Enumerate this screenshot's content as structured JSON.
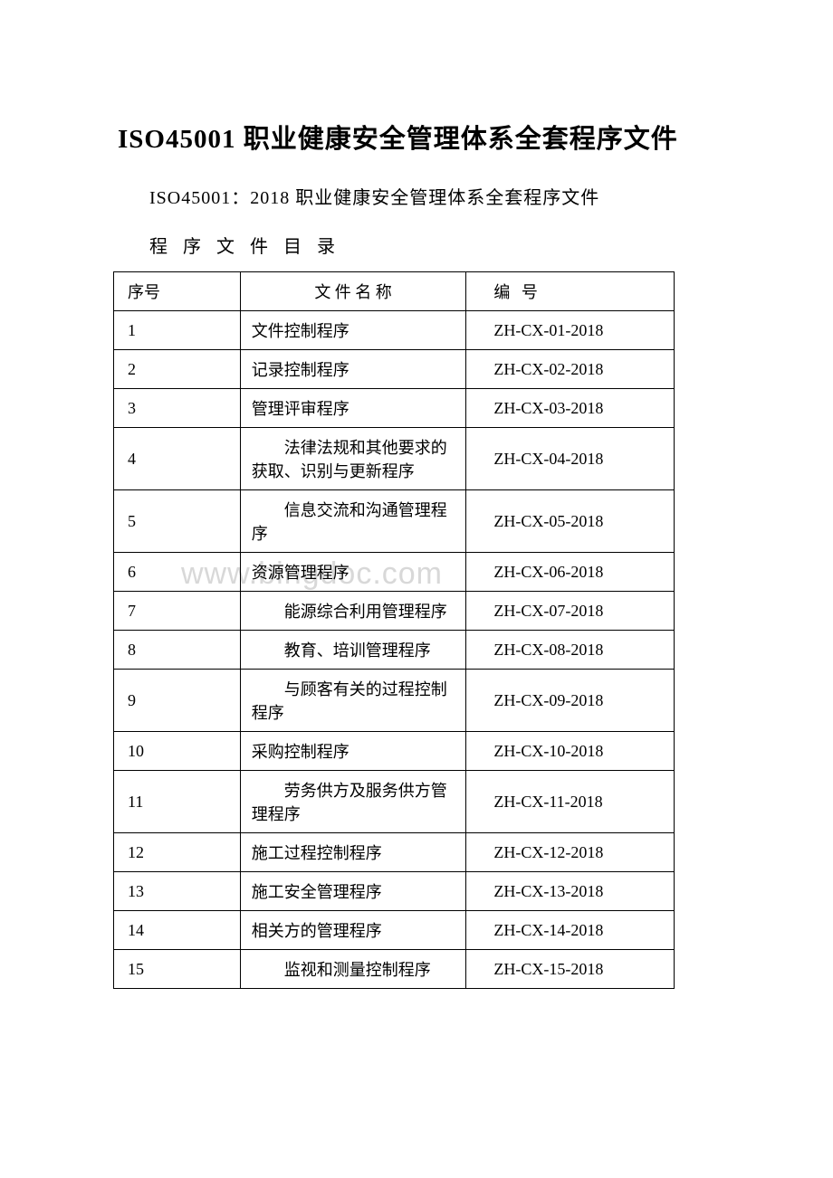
{
  "title": "ISO45001 职业健康安全管理体系全套程序文件",
  "subtitle": "ISO45001：2018 职业健康安全管理体系全套程序文件",
  "toc_label": "程 序 文 件 目 录",
  "watermark": "www.bingdoc.com",
  "table": {
    "headers": {
      "seq": "序号",
      "name": "文 件 名 称",
      "code": "编  号"
    },
    "rows": [
      {
        "seq": "1",
        "name": "文件控制程序",
        "code": "ZH-CX-01-2018",
        "style": "center"
      },
      {
        "seq": "2",
        "name": "记录控制程序",
        "code": "ZH-CX-02-2018",
        "style": "center"
      },
      {
        "seq": "3",
        "name": "管理评审程序",
        "code": "ZH-CX-03-2018",
        "style": "center"
      },
      {
        "seq": "4",
        "name": "　　法律法规和其他要求的获取、识别与更新程序",
        "code": "ZH-CX-04-2018",
        "style": "left"
      },
      {
        "seq": "5",
        "name": "　　信息交流和沟通管理程序",
        "code": "ZH-CX-05-2018",
        "style": "left"
      },
      {
        "seq": "6",
        "name": "资源管理程序",
        "code": "ZH-CX-06-2018",
        "style": "center"
      },
      {
        "seq": "7",
        "name": "　　能源综合利用管理程序",
        "code": "ZH-CX-07-2018",
        "style": "left"
      },
      {
        "seq": "8",
        "name": "　　教育、培训管理程序",
        "code": "ZH-CX-08-2018",
        "style": "left"
      },
      {
        "seq": "9",
        "name": "　　与顾客有关的过程控制程序",
        "code": "ZH-CX-09-2018",
        "style": "left"
      },
      {
        "seq": "10",
        "name": "采购控制程序",
        "code": "ZH-CX-10-2018",
        "style": "center"
      },
      {
        "seq": "11",
        "name": "　　劳务供方及服务供方管理程序",
        "code": "ZH-CX-11-2018",
        "style": "left"
      },
      {
        "seq": "12",
        "name": "施工过程控制程序",
        "code": "ZH-CX-12-2018",
        "style": "center"
      },
      {
        "seq": "13",
        "name": "施工安全管理程序",
        "code": "ZH-CX-13-2018",
        "style": "center"
      },
      {
        "seq": "14",
        "name": "相关方的管理程序",
        "code": "ZH-CX-14-2018",
        "style": "center"
      },
      {
        "seq": "15",
        "name": "　　监视和测量控制程序",
        "code": "ZH-CX-15-2018",
        "style": "left"
      }
    ]
  }
}
